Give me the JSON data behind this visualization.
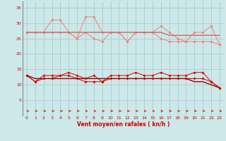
{
  "x": [
    0,
    1,
    2,
    3,
    4,
    5,
    6,
    7,
    8,
    9,
    10,
    11,
    12,
    13,
    14,
    15,
    16,
    17,
    18,
    19,
    20,
    21,
    22,
    23
  ],
  "gust_jagged1": [
    27,
    27,
    27,
    31,
    31,
    27,
    25,
    32,
    32,
    27,
    27,
    27,
    24,
    27,
    27,
    27,
    29,
    27,
    25,
    24,
    27,
    27,
    29,
    23
  ],
  "gust_jagged2": [
    27,
    27,
    27,
    27,
    27,
    27,
    25,
    27,
    25,
    24,
    27,
    27,
    24,
    27,
    27,
    27,
    25,
    24,
    24,
    24,
    24,
    24,
    24,
    23
  ],
  "gust_smooth": [
    27,
    27,
    27,
    27,
    27,
    27,
    27,
    27,
    27,
    27,
    27,
    27,
    27,
    27,
    27,
    27,
    27,
    26,
    26,
    26,
    26,
    26,
    26,
    26
  ],
  "wind_jagged1": [
    13,
    11,
    13,
    13,
    13,
    14,
    13,
    12,
    13,
    11,
    13,
    13,
    13,
    14,
    13,
    13,
    14,
    13,
    13,
    13,
    14,
    14,
    11,
    9
  ],
  "wind_jagged2": [
    13,
    11,
    12,
    12,
    13,
    13,
    12,
    11,
    11,
    11,
    12,
    12,
    12,
    12,
    12,
    12,
    12,
    12,
    12,
    12,
    12,
    12,
    11,
    9
  ],
  "wind_smooth": [
    13,
    12,
    12,
    12,
    12,
    12,
    12,
    12,
    12,
    12,
    12,
    12,
    12,
    12,
    12,
    12,
    12,
    12,
    12,
    12,
    11,
    11,
    10,
    9
  ],
  "bg_color": "#cce8e8",
  "grid_color": "#aacccc",
  "line_color_gust": "#f08080",
  "line_color_gust2": "#e06060",
  "smooth_color_gust": "#cc6666",
  "line_color_wind": "#dd0000",
  "line_color_wind2": "#cc0000",
  "smooth_color_wind": "#990000",
  "arrow_color": "#dd0000",
  "xlabel": "Vent moyen/en rafales ( kn/h )",
  "ylim": [
    0,
    37
  ],
  "xlim": [
    -0.5,
    23.5
  ],
  "yticks": [
    5,
    10,
    15,
    20,
    25,
    30,
    35
  ],
  "xticks": [
    0,
    1,
    2,
    3,
    4,
    5,
    6,
    7,
    8,
    9,
    10,
    11,
    12,
    13,
    14,
    15,
    16,
    17,
    18,
    19,
    20,
    21,
    22,
    23
  ]
}
